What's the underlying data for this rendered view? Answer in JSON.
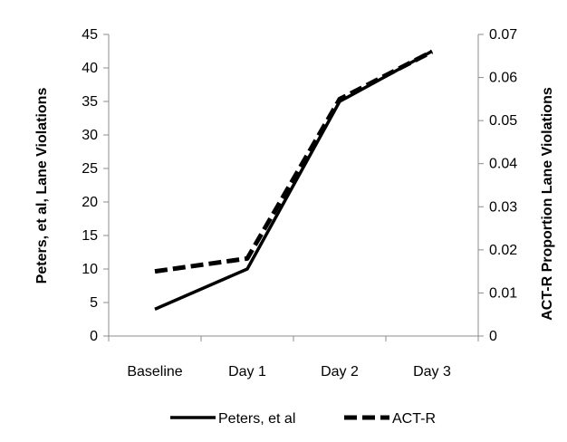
{
  "chart_data": {
    "type": "line",
    "categories": [
      "Baseline",
      "Day 1",
      "Day 2",
      "Day 3"
    ],
    "y_left": {
      "label": "Peters, et al, Lane Violations",
      "min": 0,
      "max": 45,
      "step": 5,
      "ticks": [
        "0",
        "5",
        "10",
        "15",
        "20",
        "25",
        "30",
        "35",
        "40",
        "45"
      ]
    },
    "y_right": {
      "label": "ACT-R Proportion Lane Violations",
      "min": 0,
      "max": 0.07,
      "step": 0.01,
      "ticks": [
        "0",
        "0.01",
        "0.02",
        "0.03",
        "0.04",
        "0.05",
        "0.06",
        "0.07"
      ]
    },
    "series": [
      {
        "name": "Peters, et al",
        "axis": "left",
        "style": "solid",
        "color": "#000000",
        "values": [
          4,
          10,
          35,
          42.5
        ]
      },
      {
        "name": "ACT-R",
        "axis": "right",
        "style": "dashed",
        "color": "#000000",
        "values": [
          0.015,
          0.018,
          0.055,
          0.066
        ]
      }
    ],
    "legend_position": "bottom",
    "grid": false
  }
}
